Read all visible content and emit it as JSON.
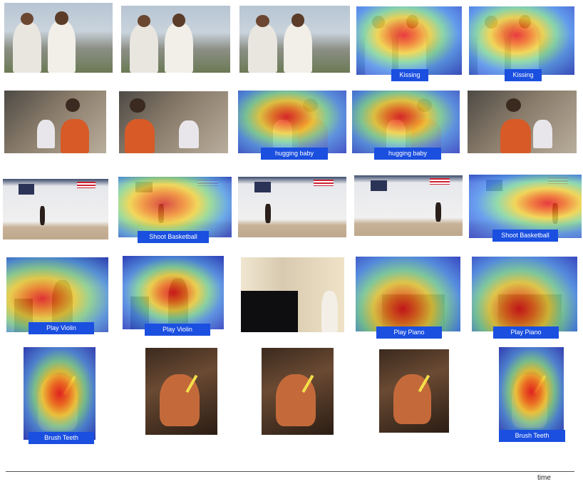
{
  "rows": [
    {
      "name": "kissing",
      "labels": [
        "Kissing",
        "Kissing"
      ]
    },
    {
      "name": "hugging-baby",
      "labels": [
        "hugging baby",
        "hugging baby"
      ]
    },
    {
      "name": "shoot-basketball",
      "labels": [
        "Shoot Basketball",
        "Shoot Basketball"
      ]
    },
    {
      "name": "play-instruments",
      "labels": [
        "Play Violin",
        "Play Violin",
        "Play Piano",
        "Play Piano"
      ]
    },
    {
      "name": "brush-teeth",
      "labels": [
        "Brush Teeth",
        "Brush Teeth"
      ]
    }
  ],
  "axis": {
    "time_label": "time"
  }
}
